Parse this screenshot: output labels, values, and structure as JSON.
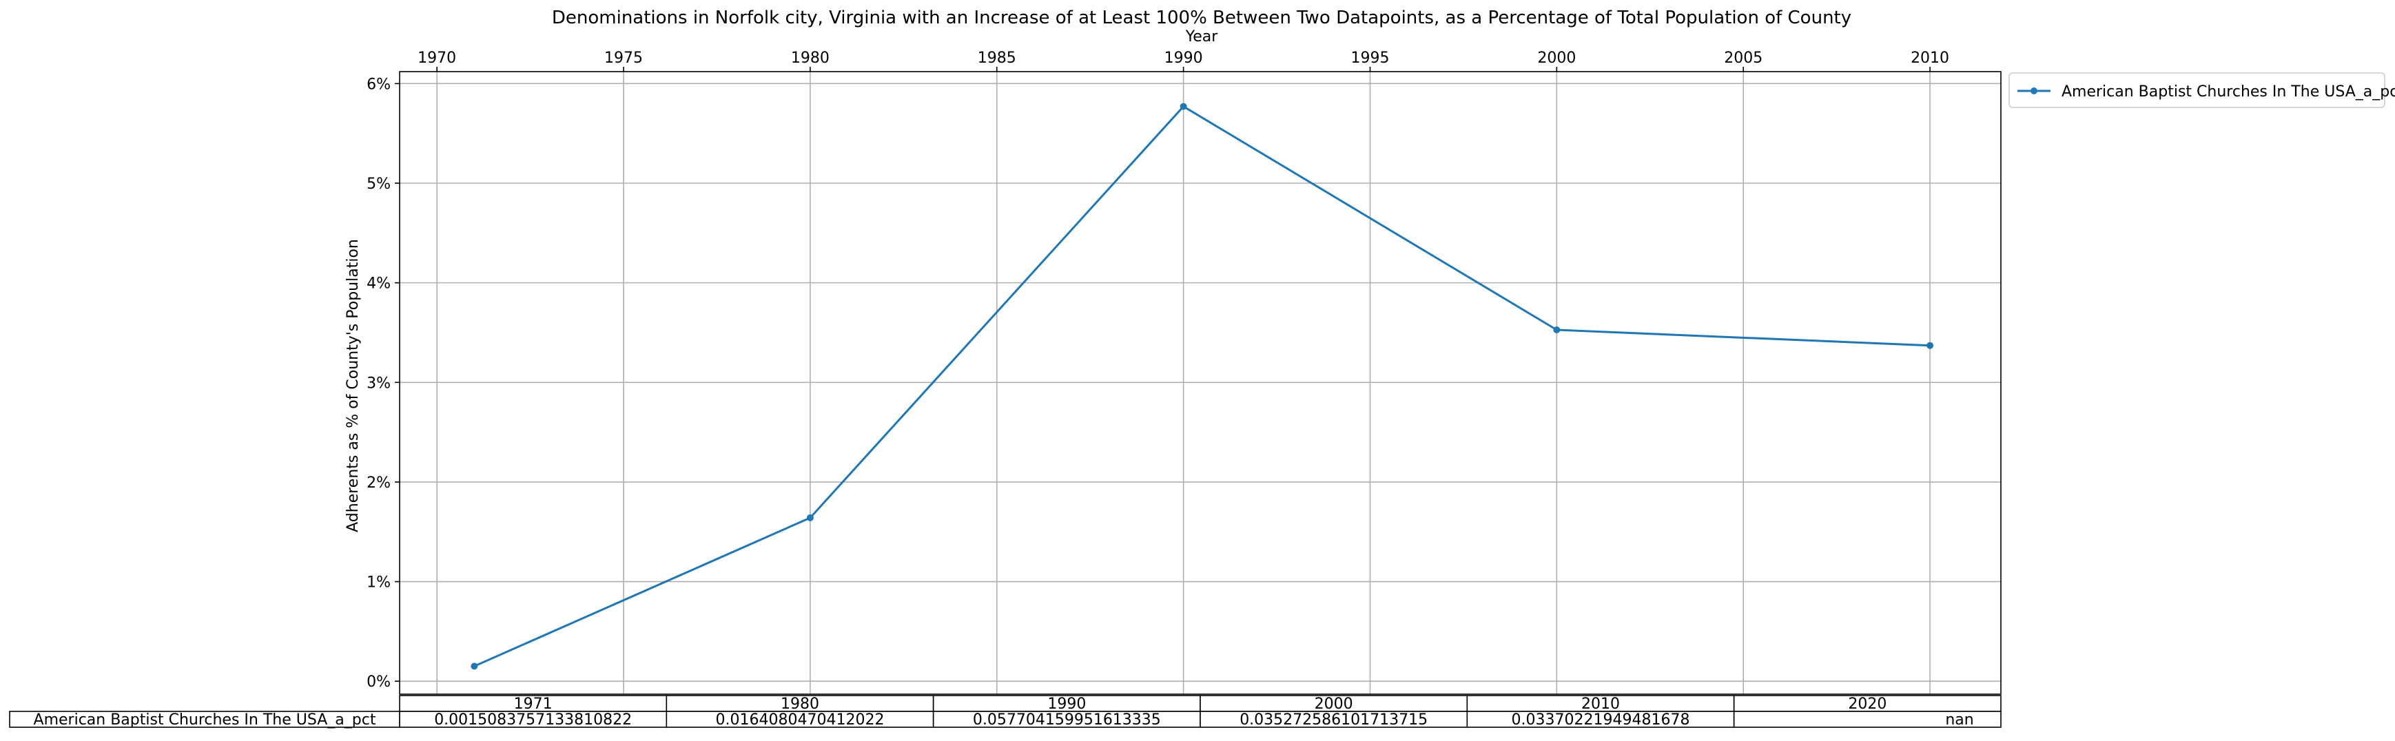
{
  "chart_data": {
    "type": "line",
    "title": "Denominations in Norfolk city, Virginia with an Increase of at Least 100% Between Two Datapoints, as a Percentage of Total Population of County",
    "xlabel": "Year",
    "ylabel": "Adherents as % of County's Population",
    "xlim": [
      1969,
      2011.9
    ],
    "ylim": [
      -0.0013,
      0.0612
    ],
    "x_ticks": [
      1970,
      1975,
      1980,
      1985,
      1990,
      1995,
      2000,
      2005,
      2010
    ],
    "y_ticks": [
      0,
      0.01,
      0.02,
      0.03,
      0.04,
      0.05,
      0.06
    ],
    "y_tick_labels": [
      "0%",
      "1%",
      "2%",
      "3%",
      "4%",
      "5%",
      "6%"
    ],
    "x_axis_position": "top",
    "grid": true,
    "legend_placement": "outside-upper-right",
    "series": [
      {
        "name": "American Baptist Churches In The USA_a_pct",
        "color": "#1f77b4",
        "marker": "dot",
        "x": [
          1971,
          1980,
          1990,
          2000,
          2010
        ],
        "y": [
          0.0015083757133810822,
          0.0164080470412022,
          0.057704159951613335,
          0.035272586101713715,
          0.03370221949481678
        ]
      }
    ],
    "table": {
      "columns": [
        "1971",
        "1980",
        "1990",
        "2000",
        "2010",
        "2020"
      ],
      "row_label": "American Baptist Churches In The USA_a_pct",
      "cells": [
        "0.0015083757133810822",
        "0.0164080470412022",
        "0.057704159951613335",
        "0.035272586101713715",
        "0.03370221949481678",
        "nan"
      ]
    }
  }
}
